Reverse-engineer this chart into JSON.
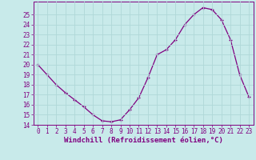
{
  "x": [
    0,
    1,
    2,
    3,
    4,
    5,
    6,
    7,
    8,
    9,
    10,
    11,
    12,
    13,
    14,
    15,
    16,
    17,
    18,
    19,
    20,
    21,
    22,
    23
  ],
  "y": [
    20.0,
    19.0,
    18.0,
    17.2,
    16.5,
    15.8,
    15.0,
    14.4,
    14.3,
    14.5,
    15.5,
    16.7,
    18.7,
    21.0,
    21.5,
    22.5,
    24.0,
    25.0,
    25.7,
    25.5,
    24.5,
    22.5,
    19.0,
    16.8
  ],
  "line_color": "#800080",
  "bg_color": "#c8eaea",
  "grid_color": "#b0d8d8",
  "xlabel": "Windchill (Refroidissement éolien,°C)",
  "xlabel_color": "#800080",
  "tick_color": "#800080",
  "ylim": [
    14,
    26
  ],
  "xlim_min": -0.5,
  "xlim_max": 23.5,
  "yticks": [
    14,
    15,
    16,
    17,
    18,
    19,
    20,
    21,
    22,
    23,
    24,
    25
  ],
  "xticks": [
    0,
    1,
    2,
    3,
    4,
    5,
    6,
    7,
    8,
    9,
    10,
    11,
    12,
    13,
    14,
    15,
    16,
    17,
    18,
    19,
    20,
    21,
    22,
    23
  ],
  "title_fontsize": 5.5,
  "xlabel_fontsize": 6.5,
  "tick_fontsize": 5.5
}
